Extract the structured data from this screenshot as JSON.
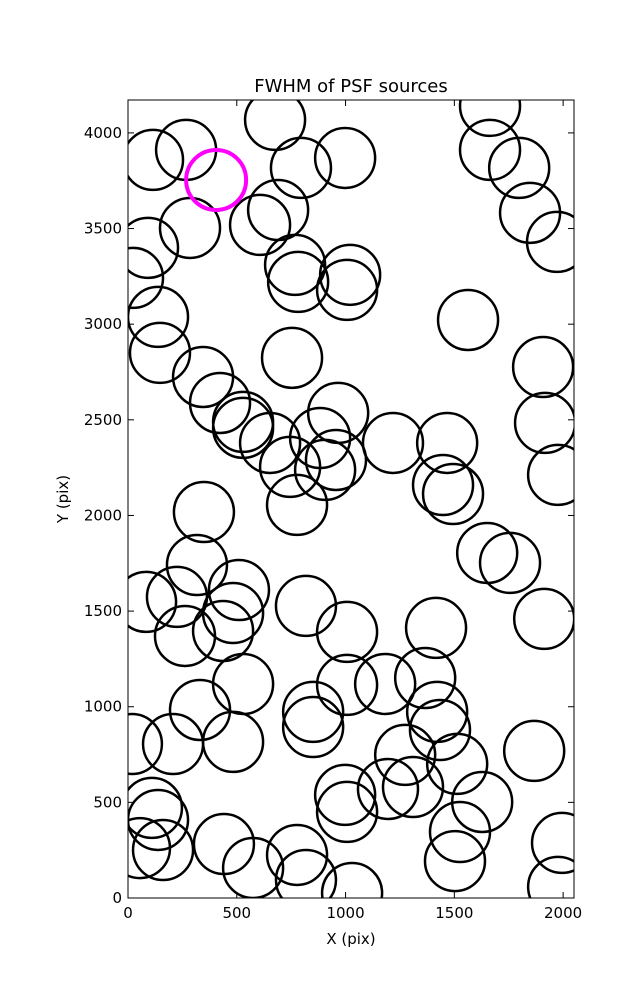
{
  "chart_data": {
    "type": "scatter",
    "title": "FWHM of PSF sources",
    "x_label": "X (pix)",
    "y_label": "Y (pix)",
    "xlim": [
      0,
      2050
    ],
    "ylim": [
      0,
      4172
    ],
    "xticks": [
      0,
      500,
      1000,
      1500,
      2000
    ],
    "yticks": [
      0,
      500,
      1000,
      1500,
      2000,
      2500,
      3000,
      3500,
      4000
    ],
    "series": [
      {
        "color": "#000000",
        "x": [
          115,
          267,
          676,
          795,
          998,
          1664,
          1664,
          1798,
          1848,
          1972,
          285,
          607,
          690,
          92,
          23,
          768,
          782,
          1021,
          1007,
          138,
          1563,
          147,
          754,
          345,
          423,
          1908,
          529,
          529,
          966,
          653,
          883,
          956,
          745,
          906,
          1218,
          1467,
          1917,
          1977,
          1448,
          1494,
          777,
          349,
          1651,
          1756,
          83,
          317,
          225,
          510,
          483,
          818,
          1913,
          262,
          437,
          1007,
          1416,
          529,
          1007,
          1182,
          1366,
          331,
          851,
          851,
          1421,
          1434,
          18,
          207,
          483,
          1274,
          1513,
          1867,
          110,
          138,
          998,
          1007,
          1195,
          1310,
          1628,
          1526,
          1503,
          55,
          161,
          441,
          777,
          575,
          818,
          1030,
          1995,
          1977
        ],
        "y": [
          3859,
          3911,
          4068,
          3817,
          3869,
          4141,
          3911,
          3817,
          3582,
          3430,
          3503,
          3519,
          3597,
          3399,
          3242,
          3310,
          3221,
          3258,
          3179,
          3038,
          3022,
          2850,
          2824,
          2724,
          2588,
          2776,
          2489,
          2458,
          2536,
          2379,
          2405,
          2290,
          2254,
          2238,
          2379,
          2379,
          2484,
          2212,
          2159,
          2112,
          2055,
          2018,
          1804,
          1752,
          1548,
          1741,
          1574,
          1610,
          1490,
          1527,
          1459,
          1370,
          1396,
          1391,
          1412,
          1119,
          1114,
          1119,
          1150,
          983,
          973,
          894,
          973,
          878,
          805,
          805,
          816,
          748,
          701,
          769,
          471,
          408,
          539,
          450,
          570,
          580,
          502,
          345,
          193,
          261,
          251,
          282,
          225,
          157,
          94,
          26,
          288,
          58
        ]
      },
      {
        "color": "#ff00ff",
        "x": [
          405
        ],
        "y": [
          3754
        ]
      }
    ]
  }
}
